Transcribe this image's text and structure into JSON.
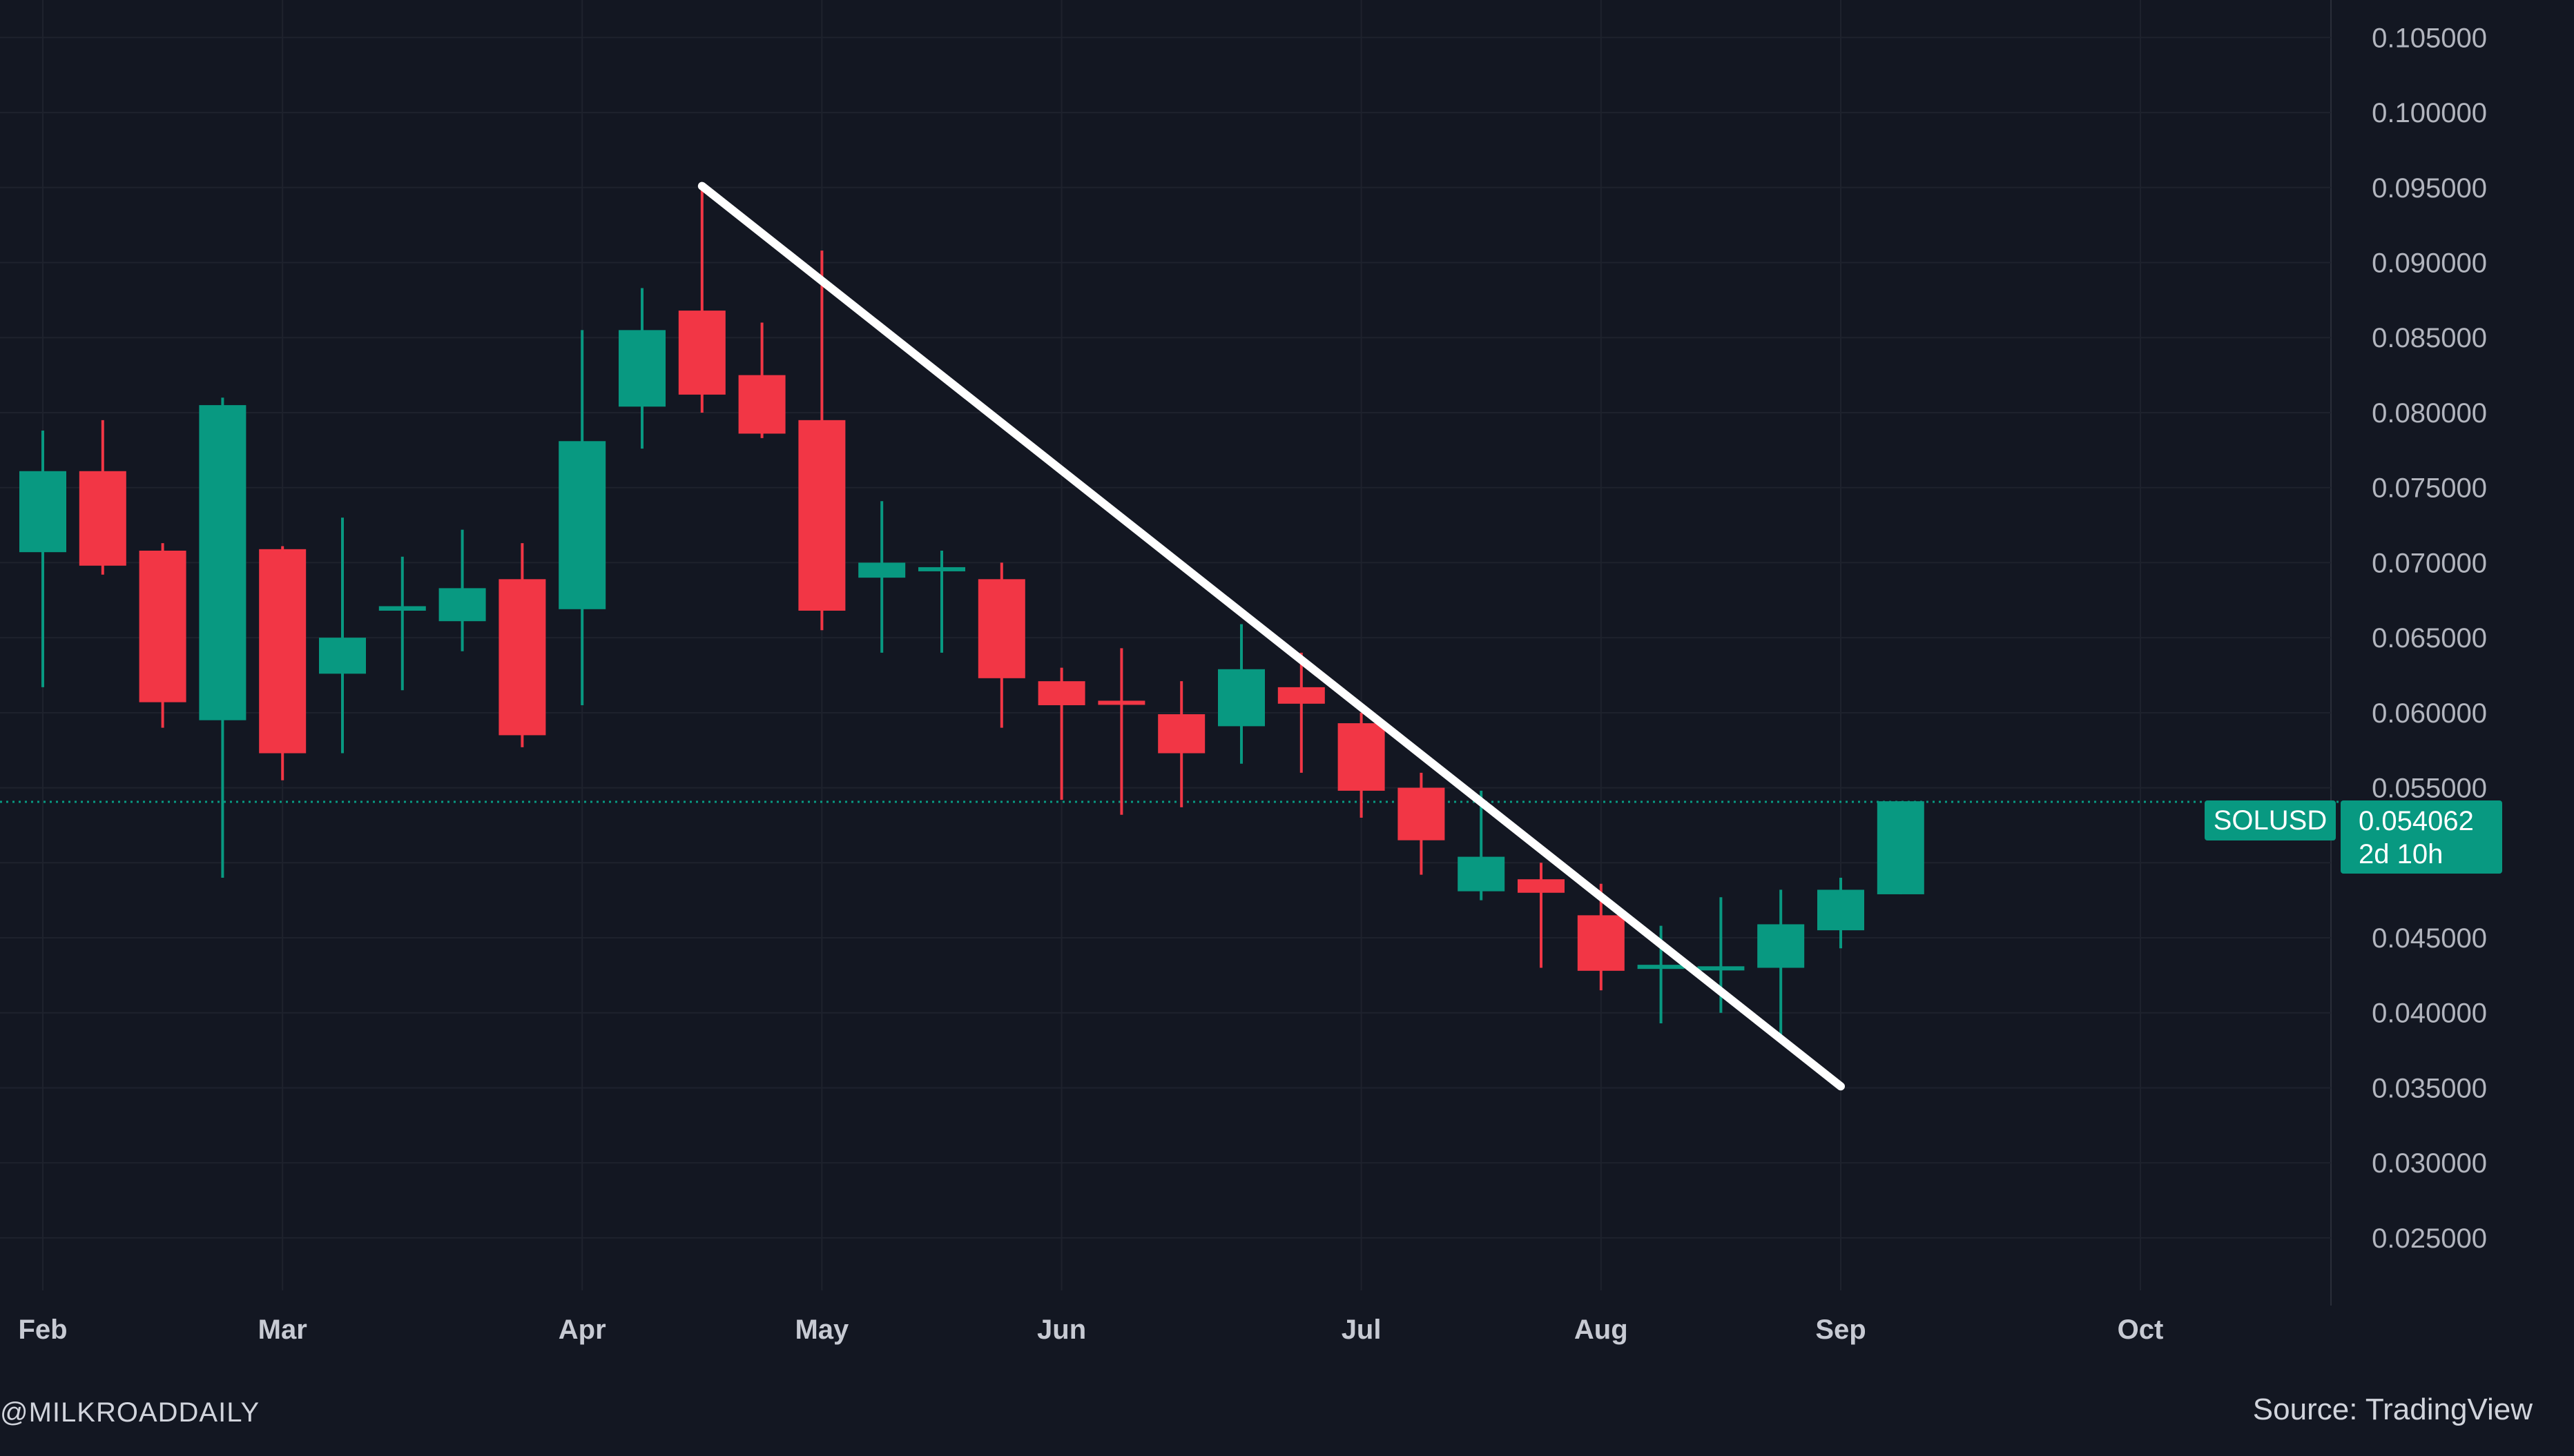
{
  "chart_data": {
    "type": "candlestick",
    "symbol": "SOLUSD",
    "interval": "weekly",
    "y_ticks": [
      "0.105000",
      "0.100000",
      "0.095000",
      "0.090000",
      "0.085000",
      "0.080000",
      "0.075000",
      "0.070000",
      "0.065000",
      "0.060000",
      "0.055000",
      "0.050000",
      "0.045000",
      "0.040000",
      "0.035000",
      "0.030000",
      "0.025000"
    ],
    "ylim": [
      0.0215,
      0.1075
    ],
    "x_ticks": [
      {
        "label": "Feb",
        "idx": 0
      },
      {
        "label": "Mar",
        "idx": 4
      },
      {
        "label": "Apr",
        "idx": 9
      },
      {
        "label": "May",
        "idx": 13
      },
      {
        "label": "Jun",
        "idx": 17
      },
      {
        "label": "Jul",
        "idx": 22
      },
      {
        "label": "Aug",
        "idx": 26
      },
      {
        "label": "Sep",
        "idx": 30
      },
      {
        "label": "Oct",
        "idx": 35
      }
    ],
    "candles": [
      {
        "o": 0.0707,
        "h": 0.0788,
        "l": 0.0617,
        "c": 0.0761
      },
      {
        "o": 0.0761,
        "h": 0.0795,
        "l": 0.0692,
        "c": 0.0698
      },
      {
        "o": 0.0708,
        "h": 0.0713,
        "l": 0.059,
        "c": 0.0607
      },
      {
        "o": 0.0595,
        "h": 0.081,
        "l": 0.049,
        "c": 0.0805
      },
      {
        "o": 0.0709,
        "h": 0.0711,
        "l": 0.0555,
        "c": 0.0573
      },
      {
        "o": 0.0626,
        "h": 0.073,
        "l": 0.0573,
        "c": 0.065
      },
      {
        "o": 0.0668,
        "h": 0.0704,
        "l": 0.0615,
        "c": 0.0671
      },
      {
        "o": 0.0661,
        "h": 0.0722,
        "l": 0.0641,
        "c": 0.0683
      },
      {
        "o": 0.0689,
        "h": 0.0713,
        "l": 0.0577,
        "c": 0.0585
      },
      {
        "o": 0.0669,
        "h": 0.0855,
        "l": 0.0605,
        "c": 0.0781
      },
      {
        "o": 0.0804,
        "h": 0.0883,
        "l": 0.0776,
        "c": 0.0855
      },
      {
        "o": 0.0868,
        "h": 0.095,
        "l": 0.08,
        "c": 0.0812
      },
      {
        "o": 0.0825,
        "h": 0.086,
        "l": 0.0783,
        "c": 0.0786
      },
      {
        "o": 0.0795,
        "h": 0.0908,
        "l": 0.0655,
        "c": 0.0668
      },
      {
        "o": 0.069,
        "h": 0.0741,
        "l": 0.064,
        "c": 0.07
      },
      {
        "o": 0.0695,
        "h": 0.0708,
        "l": 0.064,
        "c": 0.0697
      },
      {
        "o": 0.0689,
        "h": 0.07,
        "l": 0.059,
        "c": 0.0623
      },
      {
        "o": 0.0621,
        "h": 0.063,
        "l": 0.0542,
        "c": 0.0605
      },
      {
        "o": 0.0608,
        "h": 0.0643,
        "l": 0.0532,
        "c": 0.0606
      },
      {
        "o": 0.0599,
        "h": 0.0621,
        "l": 0.0537,
        "c": 0.0573
      },
      {
        "o": 0.0591,
        "h": 0.0659,
        "l": 0.0566,
        "c": 0.0629
      },
      {
        "o": 0.0617,
        "h": 0.064,
        "l": 0.056,
        "c": 0.0606
      },
      {
        "o": 0.0593,
        "h": 0.06,
        "l": 0.053,
        "c": 0.0548
      },
      {
        "o": 0.055,
        "h": 0.056,
        "l": 0.0492,
        "c": 0.0515
      },
      {
        "o": 0.0481,
        "h": 0.0548,
        "l": 0.0475,
        "c": 0.0504
      },
      {
        "o": 0.0489,
        "h": 0.05,
        "l": 0.043,
        "c": 0.048
      },
      {
        "o": 0.0465,
        "h": 0.0486,
        "l": 0.0415,
        "c": 0.0428
      },
      {
        "o": 0.043,
        "h": 0.0458,
        "l": 0.0393,
        "c": 0.0432
      },
      {
        "o": 0.0429,
        "h": 0.0477,
        "l": 0.04,
        "c": 0.0431
      },
      {
        "o": 0.043,
        "h": 0.0482,
        "l": 0.0385,
        "c": 0.0459
      },
      {
        "o": 0.0455,
        "h": 0.049,
        "l": 0.0443,
        "c": 0.0482
      },
      {
        "o": 0.0479,
        "h": 0.0541,
        "l": 0.0479,
        "c": 0.0541
      }
    ],
    "trendline": {
      "from": {
        "idx": 11,
        "price": 0.0951
      },
      "to": {
        "idx": 30,
        "price": 0.0351
      }
    },
    "last_price": "0.054062",
    "countdown": "2d 10h",
    "grid": true,
    "colors": {
      "background": "#131722",
      "up": "#089981",
      "down": "#f23645",
      "grid": "#1e222d",
      "trendline": "#ffffff"
    }
  },
  "watermark": "@MILKROADDAILY",
  "source": "Source: TradingView"
}
